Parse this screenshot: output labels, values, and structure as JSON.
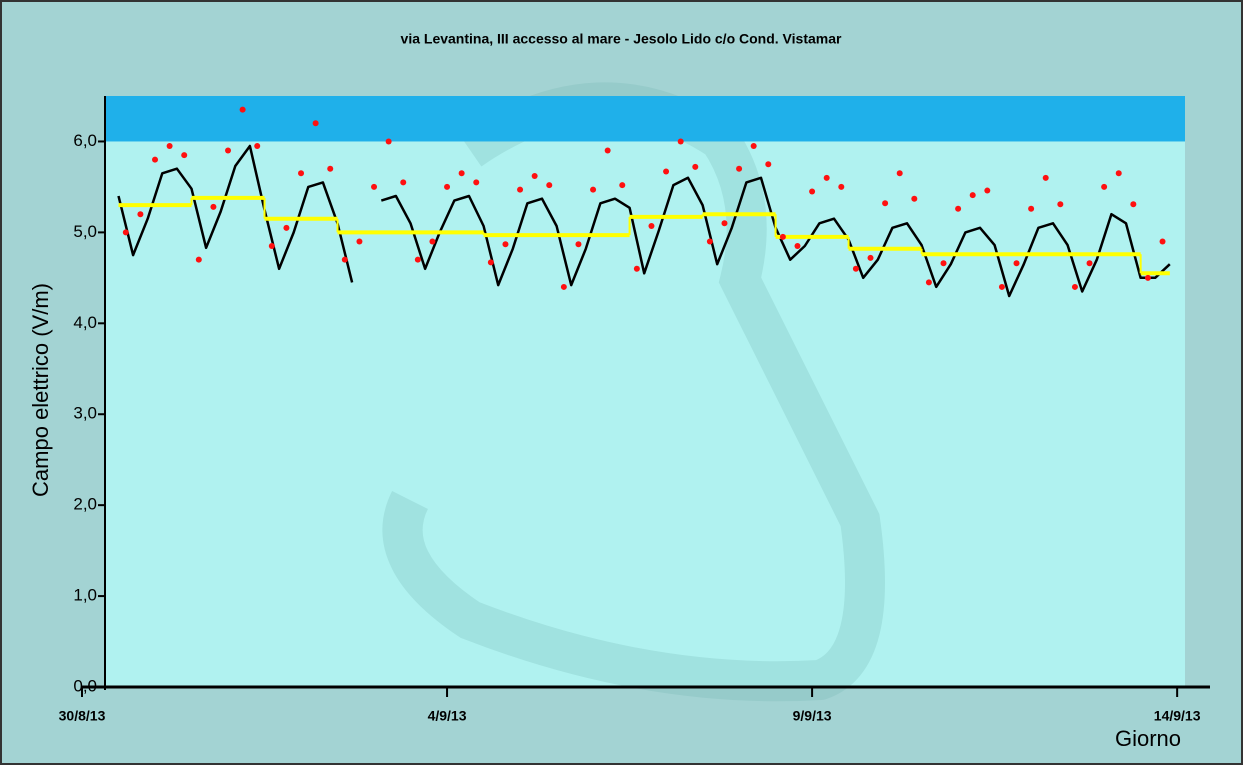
{
  "chart_data": {
    "type": "line",
    "title": "via Levantina, III accesso al mare - Jesolo Lido c/o Cond. Vistamar",
    "x_label": "Giorno",
    "y_label": "Campo elettrico (V/m)",
    "xlim": [
      0,
      15.45
    ],
    "ylim": [
      0,
      6.5
    ],
    "xticks": [
      {
        "value": 0,
        "label": "30/8/13"
      },
      {
        "value": 5,
        "label": "4/9/13"
      },
      {
        "value": 10,
        "label": "9/9/13"
      },
      {
        "value": 15,
        "label": "14/9/13"
      }
    ],
    "yticks": [
      {
        "value": 0,
        "label": "0,0"
      },
      {
        "value": 1,
        "label": "1,0"
      },
      {
        "value": 2,
        "label": "2,0"
      },
      {
        "value": 3,
        "label": "3,0"
      },
      {
        "value": 4,
        "label": "4,0"
      },
      {
        "value": 5,
        "label": "5,0"
      },
      {
        "value": 6,
        "label": "6,0"
      }
    ],
    "bands": [
      {
        "from": 6,
        "to": 6.5,
        "color": "#1fb0ea"
      }
    ],
    "series": [
      {
        "style": "line",
        "color": "#000000",
        "x": [
          0.5,
          0.7,
          0.9,
          1.1,
          1.3,
          1.5,
          1.7,
          1.9,
          2.1,
          2.3,
          2.5,
          2.7,
          2.9,
          3.1,
          3.3,
          3.5,
          3.7,
          3.9,
          4.1,
          4.3,
          4.5,
          4.7,
          4.9,
          5.1,
          5.3,
          5.5,
          5.7,
          5.9,
          6.1,
          6.3,
          6.5,
          6.7,
          6.9,
          7.1,
          7.3,
          7.5,
          7.7,
          7.9,
          8.1,
          8.3,
          8.5,
          8.7,
          8.9,
          9.1,
          9.3,
          9.5,
          9.7,
          9.9,
          10.1,
          10.3,
          10.5,
          10.7,
          10.9,
          11.1,
          11.3,
          11.5,
          11.7,
          11.9,
          12.1,
          12.3,
          12.5,
          12.7,
          12.9,
          13.1,
          13.3,
          13.5,
          13.7,
          13.9,
          14.1,
          14.3,
          14.5,
          14.7,
          14.9
        ],
        "values": [
          5.4,
          4.75,
          5.15,
          5.65,
          5.7,
          5.48,
          4.83,
          5.23,
          5.73,
          5.95,
          5.25,
          4.6,
          5.0,
          5.5,
          5.55,
          5.1,
          4.45,
          null,
          5.35,
          5.4,
          5.1,
          4.6,
          5.0,
          5.35,
          5.4,
          5.07,
          4.42,
          4.82,
          5.32,
          5.37,
          5.07,
          4.42,
          4.82,
          5.32,
          5.37,
          5.27,
          4.55,
          5.02,
          5.52,
          5.6,
          5.3,
          4.65,
          5.05,
          5.55,
          5.6,
          5.05,
          4.7,
          4.85,
          5.1,
          5.15,
          4.92,
          4.5,
          4.7,
          5.05,
          5.1,
          4.86,
          4.4,
          4.65,
          5.0,
          5.05,
          4.86,
          4.3,
          4.65,
          5.05,
          5.1,
          4.86,
          4.35,
          4.7,
          5.2,
          5.1,
          4.5,
          4.5,
          4.65
        ]
      },
      {
        "style": "scatter",
        "color": "#ff1010",
        "x": [
          0.6,
          0.8,
          1.0,
          1.2,
          1.4,
          1.6,
          1.8,
          2.0,
          2.2,
          2.4,
          2.6,
          2.8,
          3.0,
          3.2,
          3.4,
          3.6,
          3.8,
          4.0,
          4.2,
          4.4,
          4.6,
          4.8,
          5.0,
          5.2,
          5.4,
          5.6,
          5.8,
          6.0,
          6.2,
          6.4,
          6.6,
          6.8,
          7.0,
          7.2,
          7.4,
          7.6,
          7.8,
          8.0,
          8.2,
          8.4,
          8.6,
          8.8,
          9.0,
          9.2,
          9.4,
          9.6,
          9.8,
          10.0,
          10.2,
          10.4,
          10.6,
          10.8,
          11.0,
          11.2,
          11.4,
          11.6,
          11.8,
          12.0,
          12.2,
          12.4,
          12.6,
          12.8,
          13.0,
          13.2,
          13.4,
          13.6,
          13.8,
          14.0,
          14.2,
          14.4,
          14.6,
          14.8
        ],
        "values": [
          5.0,
          5.2,
          5.8,
          5.95,
          5.85,
          4.7,
          5.28,
          5.9,
          6.35,
          5.95,
          4.85,
          5.05,
          5.65,
          6.2,
          5.7,
          4.7,
          4.9,
          5.5,
          6.0,
          5.55,
          4.7,
          4.9,
          5.5,
          5.65,
          5.55,
          4.67,
          4.87,
          5.47,
          5.62,
          5.52,
          4.4,
          4.87,
          5.47,
          5.9,
          5.52,
          4.6,
          5.07,
          5.67,
          6.0,
          5.72,
          4.9,
          5.1,
          5.7,
          5.95,
          5.75,
          4.95,
          4.85,
          5.45,
          5.6,
          5.5,
          4.6,
          4.72,
          5.32,
          5.65,
          5.37,
          4.45,
          4.66,
          5.26,
          5.41,
          5.46,
          4.4,
          4.66,
          5.26,
          5.6,
          5.31,
          4.4,
          4.66,
          5.5,
          5.65,
          5.31,
          4.5,
          4.9
        ]
      },
      {
        "style": "step",
        "color": "#ffff00",
        "x": [
          0.5,
          1.5,
          2.5,
          3.5,
          4.5,
          5.5,
          6.5,
          7.5,
          8.5,
          9.5,
          10.5,
          11.5,
          12.5,
          13.5,
          14.5
        ],
        "values": [
          5.3,
          5.38,
          5.15,
          5.0,
          5.0,
          4.97,
          4.97,
          5.17,
          5.2,
          4.95,
          4.82,
          4.76,
          4.76,
          4.76,
          4.55
        ]
      }
    ]
  }
}
